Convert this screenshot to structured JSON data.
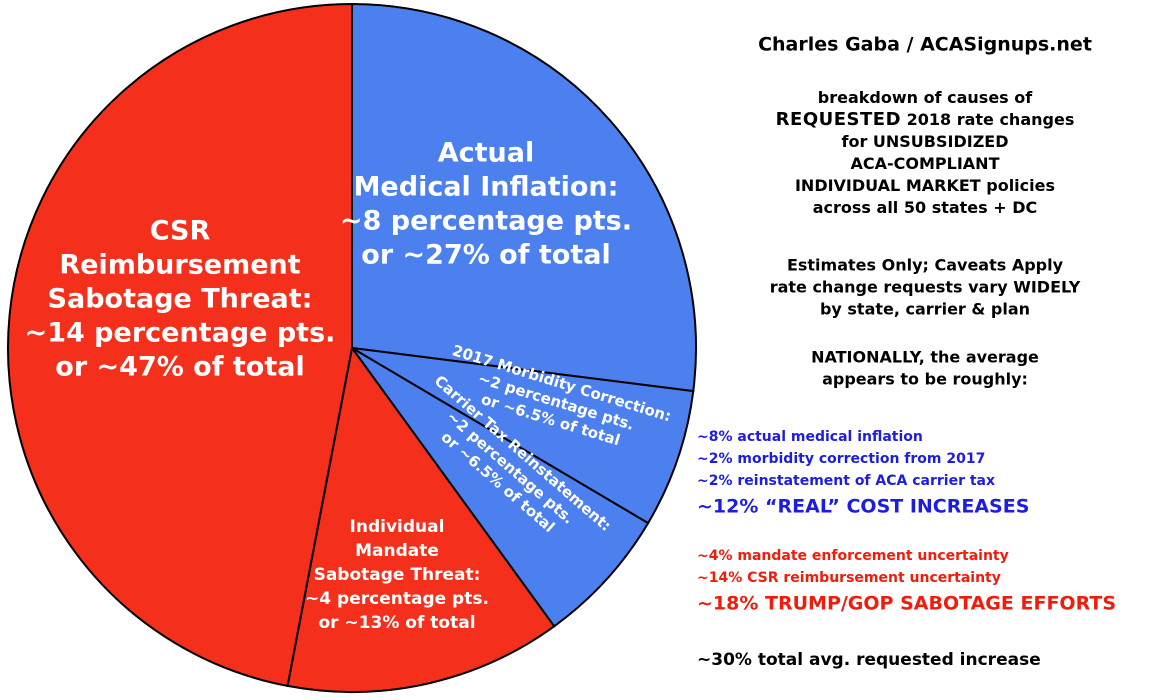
{
  "chart_data": {
    "type": "pie",
    "title": "Charles Gaba / ACASignups.net",
    "categories": [
      [
        "Actual",
        "Medical Inflation:",
        "~8 percentage pts.",
        "or ~27% of total"
      ],
      [
        "2017 Morbidity Correction:",
        "~2 percentage pts.",
        "or ~6.5% of total"
      ],
      [
        "Carrier Tax Reinstatement:",
        "~2 percentage pts.",
        "or ~6.5% of total"
      ],
      [
        "Individual",
        "Mandate",
        "Sabotage Threat:",
        "~4 percentage pts.",
        "or ~13% of total"
      ],
      [
        "CSR",
        "Reimbursement",
        "Sabotage Threat:",
        "~14 percentage pts.",
        "or ~47% of total"
      ]
    ],
    "values": [
      27,
      6.5,
      6.5,
      13,
      47
    ],
    "colors": [
      "#4b80ee",
      "#4b80ee",
      "#4b80ee",
      "#f42f1c",
      "#f42f1c"
    ],
    "description": [
      [
        "breakdown of causes of"
      ],
      [
        "REQUESTED",
        " 2018 rate changes"
      ],
      [
        "for UNSUBSIDIZED"
      ],
      [
        "ACA-COMPLIANT"
      ],
      [
        "INDIVIDUAL MARKET policies"
      ],
      [
        "across all 50 states + DC"
      ]
    ],
    "caveats": [
      "Estimates Only; Caveats Apply",
      "rate change requests vary WIDELY",
      "by state, carrier & plan"
    ],
    "national": [
      "NATIONALLY, the average",
      "appears to be roughly:"
    ],
    "real_costs": {
      "color": "#1d1de0",
      "items": [
        "~8% actual medical inflation",
        "~2% morbidity correction from 2017",
        "~2% reinstatement of ACA carrier tax"
      ],
      "total": "~12% “REAL” COST INCREASES"
    },
    "sabotage": {
      "color": "#f01c0c",
      "items": [
        "~4% mandate enforcement uncertainty",
        "~14% CSR reimbursement uncertainty"
      ],
      "total": "~18% TRUMP/GOP SABOTAGE EFFORTS"
    },
    "total_increase": "~30% total avg. requested increase"
  }
}
